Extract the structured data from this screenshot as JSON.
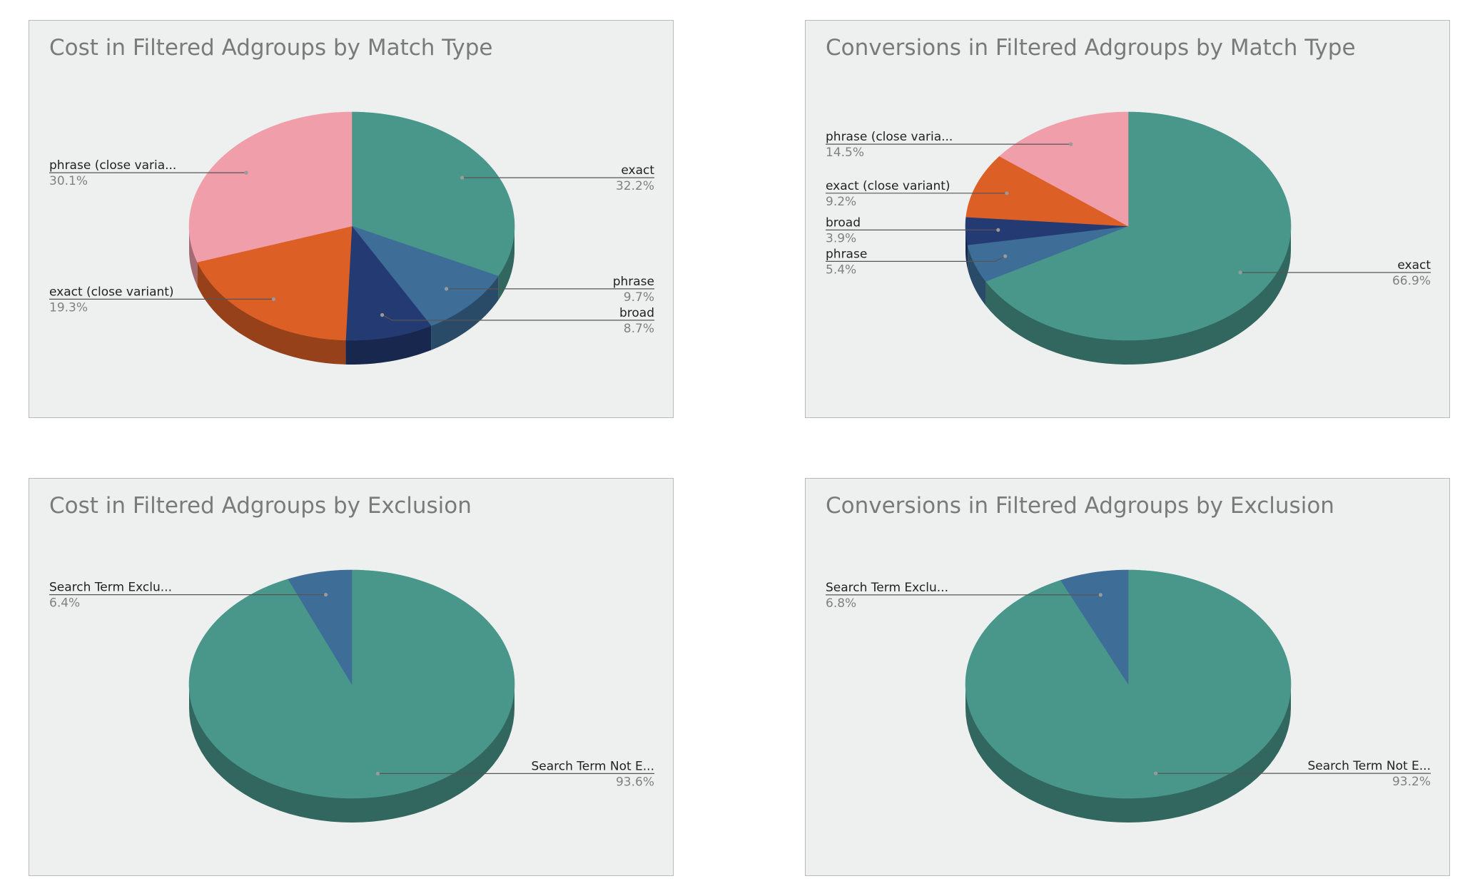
{
  "colors": {
    "green": "#48978a",
    "steel_blue": "#3e6e98",
    "navy": "#243a72",
    "orange": "#dc5f26",
    "pink": "#f09faa",
    "label_text": "#222222",
    "pct_text": "#808080",
    "leader_line": "#555555"
  },
  "chart_data": [
    {
      "type": "pie",
      "style": "3d",
      "title": "Cost in Filtered Adgroups by Match Type",
      "slices": [
        {
          "label": "exact",
          "value": 32.2,
          "pct": "32.2%",
          "color": "green"
        },
        {
          "label": "phrase",
          "value": 9.7,
          "pct": "9.7%",
          "color": "steel_blue"
        },
        {
          "label": "broad",
          "value": 8.7,
          "pct": "8.7%",
          "color": "navy"
        },
        {
          "label": "exact (close variant)",
          "value": 19.3,
          "pct": "19.3%",
          "color": "orange"
        },
        {
          "label": "phrase (close varia...",
          "value": 30.1,
          "pct": "30.1%",
          "color": "pink"
        }
      ]
    },
    {
      "type": "pie",
      "style": "3d",
      "title": "Conversions in Filtered Adgroups by Match Type",
      "slices": [
        {
          "label": "exact",
          "value": 66.9,
          "pct": "66.9%",
          "color": "green"
        },
        {
          "label": "phrase",
          "value": 5.4,
          "pct": "5.4%",
          "color": "steel_blue"
        },
        {
          "label": "broad",
          "value": 3.9,
          "pct": "3.9%",
          "color": "navy"
        },
        {
          "label": "exact (close variant)",
          "value": 9.2,
          "pct": "9.2%",
          "color": "orange"
        },
        {
          "label": "phrase (close varia...",
          "value": 14.5,
          "pct": "14.5%",
          "color": "pink"
        }
      ]
    },
    {
      "type": "pie",
      "style": "3d",
      "title": "Cost in Filtered Adgroups by Exclusion",
      "slices": [
        {
          "label": "Search Term Not E...",
          "value": 93.6,
          "pct": "93.6%",
          "color": "green"
        },
        {
          "label": "Search Term Exclu...",
          "value": 6.4,
          "pct": "6.4%",
          "color": "steel_blue"
        }
      ]
    },
    {
      "type": "pie",
      "style": "3d",
      "title": "Conversions in Filtered Adgroups by Exclusion",
      "slices": [
        {
          "label": "Search Term Not E...",
          "value": 93.2,
          "pct": "93.2%",
          "color": "green"
        },
        {
          "label": "Search Term Exclu...",
          "value": 6.8,
          "pct": "6.8%",
          "color": "steel_blue"
        }
      ]
    }
  ]
}
